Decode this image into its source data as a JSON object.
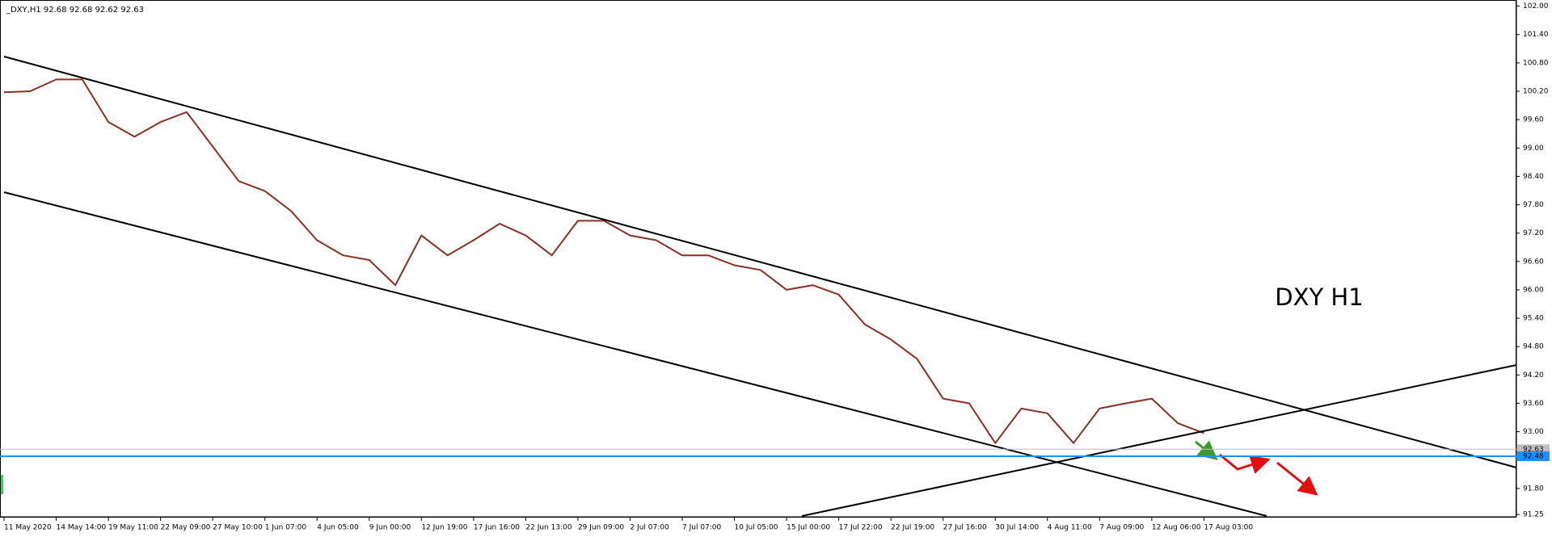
{
  "chart_data": {
    "type": "line",
    "title": "_DXY,H1  92.68 92.68 92.62 92.63",
    "annotation": "DXY H1",
    "annotation_color": "#4a9a2a",
    "color": "#8b2f23",
    "categories": [
      "11 May 2020",
      null,
      "14 May 14:00",
      null,
      "19 May 11:00",
      null,
      "22 May 09:00",
      null,
      "27 May 10:00",
      null,
      "1 Jun 07:00",
      null,
      "4 Jun 05:00",
      null,
      "9 Jun 00:00",
      null,
      "12 Jun 19:00",
      null,
      "17 Jun 16:00",
      null,
      "22 Jun 13:00",
      null,
      "29 Jun 09:00",
      null,
      "2 Jul 07:00",
      null,
      "7 Jul 07:00",
      null,
      "10 Jul 05:00",
      null,
      "15 Jul 00:00",
      null,
      "17 Jul 22:00",
      null,
      "22 Jul 19:00",
      null,
      "27 Jul 16:00",
      null,
      "30 Jul 14:00",
      null,
      "4 Aug 11:00",
      null,
      "7 Aug 09:00",
      null,
      "12 Aug 06:00",
      null,
      "17 Aug 03:00",
      null,
      null,
      null,
      null,
      null,
      null,
      null,
      null,
      null,
      null,
      null
    ],
    "values": [
      100.18,
      100.2,
      100.45,
      100.45,
      99.55,
      99.24,
      99.55,
      99.76,
      99.03,
      98.3,
      98.09,
      97.67,
      97.05,
      96.73,
      96.63,
      96.1,
      97.15,
      96.73,
      97.05,
      97.4,
      97.15,
      96.73,
      97.46,
      97.46,
      97.15,
      97.05,
      96.73,
      96.73,
      96.52,
      96.42,
      96.0,
      96.1,
      95.9,
      95.27,
      94.95,
      94.54,
      93.7,
      93.6,
      92.76,
      93.49,
      93.39,
      92.76,
      93.49,
      93.6,
      93.7,
      93.18,
      92.97,
      null,
      null,
      null,
      null,
      null,
      null,
      null,
      null,
      null,
      null,
      null
    ],
    "ylim": [
      91.2,
      102.13
    ],
    "yticks": [
      {
        "value": 102.0,
        "label": "102.00"
      },
      {
        "value": 101.4,
        "label": "101.40"
      },
      {
        "value": 100.8,
        "label": "100.80"
      },
      {
        "value": 100.2,
        "label": "100.20"
      },
      {
        "value": 99.6,
        "label": "99.60"
      },
      {
        "value": 99.0,
        "label": "99.00"
      },
      {
        "value": 98.4,
        "label": "98.40"
      },
      {
        "value": 97.8,
        "label": "97.80"
      },
      {
        "value": 97.2,
        "label": "97.20"
      },
      {
        "value": 96.6,
        "label": "96.60"
      },
      {
        "value": 96.0,
        "label": "96.00"
      },
      {
        "value": 95.4,
        "label": "95.40"
      },
      {
        "value": 94.8,
        "label": "94.80"
      },
      {
        "value": 94.2,
        "label": "94.20"
      },
      {
        "value": 93.6,
        "label": "93.60"
      },
      {
        "value": 93.0,
        "label": "93.00"
      },
      {
        "value": 91.8,
        "label": "91.80"
      },
      {
        "value": 91.25,
        "label": "91.25"
      }
    ],
    "hlines": [
      {
        "value": 92.63,
        "label": "92.63",
        "color": "#c0c0c0"
      },
      {
        "value": 92.48,
        "label": "92.48",
        "color": "#1e90ff"
      }
    ]
  }
}
